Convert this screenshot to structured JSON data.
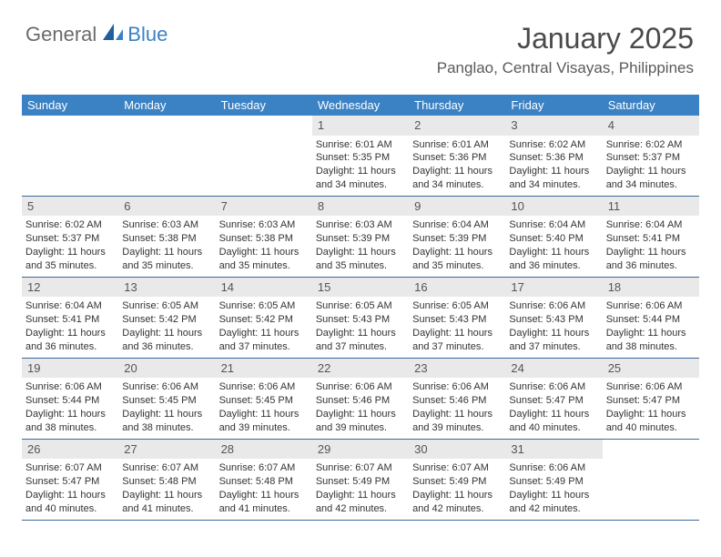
{
  "logo": {
    "part1": "General",
    "part2": "Blue"
  },
  "header": {
    "title": "January 2025",
    "location": "Panglao, Central Visayas, Philippines"
  },
  "colors": {
    "header_bg": "#3b82c4",
    "header_text": "#ffffff",
    "week_border": "#3b6a9a",
    "daynum_bg": "#e9e9e9",
    "logo_gray": "#6b6b6b",
    "logo_blue": "#3b82c4",
    "title_color": "#4a4a4a",
    "body_text": "#333333"
  },
  "day_labels": [
    "Sunday",
    "Monday",
    "Tuesday",
    "Wednesday",
    "Thursday",
    "Friday",
    "Saturday"
  ],
  "weeks": [
    [
      {
        "empty": true
      },
      {
        "empty": true
      },
      {
        "empty": true
      },
      {
        "num": "1",
        "sunrise": "6:01 AM",
        "sunset": "5:35 PM",
        "daylight": "11 hours and 34 minutes."
      },
      {
        "num": "2",
        "sunrise": "6:01 AM",
        "sunset": "5:36 PM",
        "daylight": "11 hours and 34 minutes."
      },
      {
        "num": "3",
        "sunrise": "6:02 AM",
        "sunset": "5:36 PM",
        "daylight": "11 hours and 34 minutes."
      },
      {
        "num": "4",
        "sunrise": "6:02 AM",
        "sunset": "5:37 PM",
        "daylight": "11 hours and 34 minutes."
      }
    ],
    [
      {
        "num": "5",
        "sunrise": "6:02 AM",
        "sunset": "5:37 PM",
        "daylight": "11 hours and 35 minutes."
      },
      {
        "num": "6",
        "sunrise": "6:03 AM",
        "sunset": "5:38 PM",
        "daylight": "11 hours and 35 minutes."
      },
      {
        "num": "7",
        "sunrise": "6:03 AM",
        "sunset": "5:38 PM",
        "daylight": "11 hours and 35 minutes."
      },
      {
        "num": "8",
        "sunrise": "6:03 AM",
        "sunset": "5:39 PM",
        "daylight": "11 hours and 35 minutes."
      },
      {
        "num": "9",
        "sunrise": "6:04 AM",
        "sunset": "5:39 PM",
        "daylight": "11 hours and 35 minutes."
      },
      {
        "num": "10",
        "sunrise": "6:04 AM",
        "sunset": "5:40 PM",
        "daylight": "11 hours and 36 minutes."
      },
      {
        "num": "11",
        "sunrise": "6:04 AM",
        "sunset": "5:41 PM",
        "daylight": "11 hours and 36 minutes."
      }
    ],
    [
      {
        "num": "12",
        "sunrise": "6:04 AM",
        "sunset": "5:41 PM",
        "daylight": "11 hours and 36 minutes."
      },
      {
        "num": "13",
        "sunrise": "6:05 AM",
        "sunset": "5:42 PM",
        "daylight": "11 hours and 36 minutes."
      },
      {
        "num": "14",
        "sunrise": "6:05 AM",
        "sunset": "5:42 PM",
        "daylight": "11 hours and 37 minutes."
      },
      {
        "num": "15",
        "sunrise": "6:05 AM",
        "sunset": "5:43 PM",
        "daylight": "11 hours and 37 minutes."
      },
      {
        "num": "16",
        "sunrise": "6:05 AM",
        "sunset": "5:43 PM",
        "daylight": "11 hours and 37 minutes."
      },
      {
        "num": "17",
        "sunrise": "6:06 AM",
        "sunset": "5:43 PM",
        "daylight": "11 hours and 37 minutes."
      },
      {
        "num": "18",
        "sunrise": "6:06 AM",
        "sunset": "5:44 PM",
        "daylight": "11 hours and 38 minutes."
      }
    ],
    [
      {
        "num": "19",
        "sunrise": "6:06 AM",
        "sunset": "5:44 PM",
        "daylight": "11 hours and 38 minutes."
      },
      {
        "num": "20",
        "sunrise": "6:06 AM",
        "sunset": "5:45 PM",
        "daylight": "11 hours and 38 minutes."
      },
      {
        "num": "21",
        "sunrise": "6:06 AM",
        "sunset": "5:45 PM",
        "daylight": "11 hours and 39 minutes."
      },
      {
        "num": "22",
        "sunrise": "6:06 AM",
        "sunset": "5:46 PM",
        "daylight": "11 hours and 39 minutes."
      },
      {
        "num": "23",
        "sunrise": "6:06 AM",
        "sunset": "5:46 PM",
        "daylight": "11 hours and 39 minutes."
      },
      {
        "num": "24",
        "sunrise": "6:06 AM",
        "sunset": "5:47 PM",
        "daylight": "11 hours and 40 minutes."
      },
      {
        "num": "25",
        "sunrise": "6:06 AM",
        "sunset": "5:47 PM",
        "daylight": "11 hours and 40 minutes."
      }
    ],
    [
      {
        "num": "26",
        "sunrise": "6:07 AM",
        "sunset": "5:47 PM",
        "daylight": "11 hours and 40 minutes."
      },
      {
        "num": "27",
        "sunrise": "6:07 AM",
        "sunset": "5:48 PM",
        "daylight": "11 hours and 41 minutes."
      },
      {
        "num": "28",
        "sunrise": "6:07 AM",
        "sunset": "5:48 PM",
        "daylight": "11 hours and 41 minutes."
      },
      {
        "num": "29",
        "sunrise": "6:07 AM",
        "sunset": "5:49 PM",
        "daylight": "11 hours and 42 minutes."
      },
      {
        "num": "30",
        "sunrise": "6:07 AM",
        "sunset": "5:49 PM",
        "daylight": "11 hours and 42 minutes."
      },
      {
        "num": "31",
        "sunrise": "6:06 AM",
        "sunset": "5:49 PM",
        "daylight": "11 hours and 42 minutes."
      },
      {
        "empty": true
      }
    ]
  ],
  "labels": {
    "sunrise_prefix": "Sunrise: ",
    "sunset_prefix": "Sunset: ",
    "daylight_prefix": "Daylight: "
  }
}
